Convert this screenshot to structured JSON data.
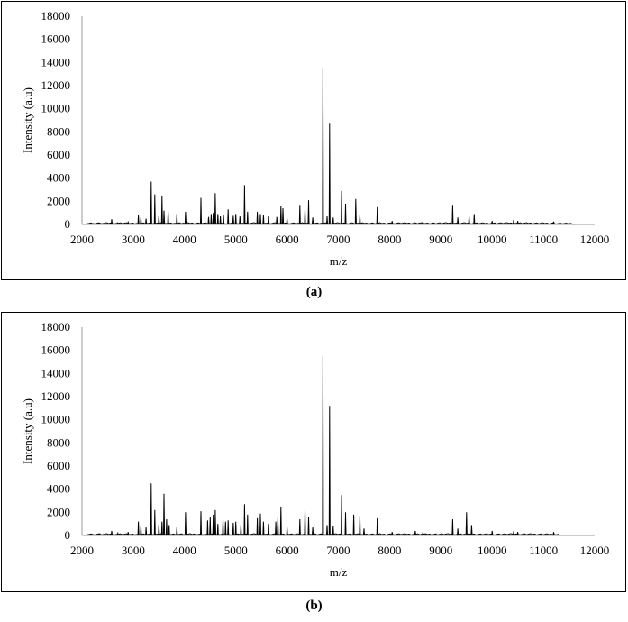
{
  "captions": [
    "(a)",
    "(b)"
  ],
  "chart_data": [
    {
      "type": "line",
      "title": "",
      "xlabel": "m/z",
      "ylabel": "Intensity (a.u)",
      "xlim": [
        2000,
        12000
      ],
      "ylim": [
        0,
        18000
      ],
      "xticks": [
        2000,
        3000,
        4000,
        5000,
        6000,
        7000,
        8000,
        9000,
        10000,
        11000,
        12000
      ],
      "yticks": [
        0,
        2000,
        4000,
        6000,
        8000,
        10000,
        12000,
        14000,
        16000,
        18000
      ],
      "x_end": 11600,
      "grid": false,
      "legend": "none",
      "series": [
        {
          "peaks": [
            [
              2200,
              80
            ],
            [
              2350,
              120
            ],
            [
              2580,
              450
            ],
            [
              2700,
              150
            ],
            [
              2900,
              200
            ],
            [
              3100,
              800
            ],
            [
              3150,
              600
            ],
            [
              3250,
              500
            ],
            [
              3350,
              3700
            ],
            [
              3420,
              2600
            ],
            [
              3500,
              700
            ],
            [
              3560,
              2500
            ],
            [
              3600,
              1200
            ],
            [
              3680,
              1100
            ],
            [
              3850,
              900
            ],
            [
              4020,
              1100
            ],
            [
              4320,
              2300
            ],
            [
              4470,
              650
            ],
            [
              4520,
              900
            ],
            [
              4560,
              1000
            ],
            [
              4600,
              2700
            ],
            [
              4650,
              900
            ],
            [
              4700,
              700
            ],
            [
              4760,
              800
            ],
            [
              4850,
              1300
            ],
            [
              4950,
              750
            ],
            [
              5000,
              900
            ],
            [
              5080,
              700
            ],
            [
              5170,
              3400
            ],
            [
              5230,
              1100
            ],
            [
              5420,
              1100
            ],
            [
              5480,
              900
            ],
            [
              5540,
              800
            ],
            [
              5640,
              700
            ],
            [
              5800,
              650
            ],
            [
              5880,
              1600
            ],
            [
              5920,
              1400
            ],
            [
              6000,
              500
            ],
            [
              6250,
              1700
            ],
            [
              6350,
              1300
            ],
            [
              6420,
              2100
            ],
            [
              6500,
              600
            ],
            [
              6700,
              13600
            ],
            [
              6780,
              700
            ],
            [
              6830,
              8700
            ],
            [
              6900,
              600
            ],
            [
              7060,
              2900
            ],
            [
              7140,
              1800
            ],
            [
              7340,
              2200
            ],
            [
              7420,
              800
            ],
            [
              7760,
              1500
            ],
            [
              8050,
              300
            ],
            [
              8650,
              250
            ],
            [
              9230,
              1700
            ],
            [
              9330,
              600
            ],
            [
              9550,
              700
            ],
            [
              9650,
              900
            ],
            [
              10000,
              300
            ],
            [
              10420,
              400
            ],
            [
              10500,
              300
            ],
            [
              11200,
              250
            ]
          ]
        }
      ]
    },
    {
      "type": "line",
      "title": "",
      "xlabel": "m/z",
      "ylabel": "Intensity (a.u)",
      "xlim": [
        2000,
        12000
      ],
      "ylim": [
        0,
        18000
      ],
      "xticks": [
        2000,
        3000,
        4000,
        5000,
        6000,
        7000,
        8000,
        9000,
        10000,
        11000,
        12000
      ],
      "yticks": [
        0,
        2000,
        4000,
        6000,
        8000,
        10000,
        12000,
        14000,
        16000,
        18000
      ],
      "x_end": 11300,
      "grid": false,
      "legend": "none",
      "series": [
        {
          "peaks": [
            [
              2200,
              100
            ],
            [
              2350,
              150
            ],
            [
              2580,
              400
            ],
            [
              2700,
              200
            ],
            [
              2900,
              300
            ],
            [
              3100,
              1200
            ],
            [
              3150,
              800
            ],
            [
              3250,
              700
            ],
            [
              3350,
              4500
            ],
            [
              3420,
              2200
            ],
            [
              3500,
              900
            ],
            [
              3560,
              1200
            ],
            [
              3600,
              3600
            ],
            [
              3650,
              1400
            ],
            [
              3700,
              900
            ],
            [
              3850,
              700
            ],
            [
              4020,
              2000
            ],
            [
              4320,
              2100
            ],
            [
              4450,
              1300
            ],
            [
              4500,
              1600
            ],
            [
              4560,
              1800
            ],
            [
              4600,
              2200
            ],
            [
              4650,
              1000
            ],
            [
              4750,
              1400
            ],
            [
              4800,
              1200
            ],
            [
              4850,
              1300
            ],
            [
              4950,
              1100
            ],
            [
              5000,
              1200
            ],
            [
              5100,
              900
            ],
            [
              5170,
              2700
            ],
            [
              5230,
              1800
            ],
            [
              5420,
              1500
            ],
            [
              5480,
              1900
            ],
            [
              5540,
              1200
            ],
            [
              5640,
              1000
            ],
            [
              5780,
              1200
            ],
            [
              5820,
              1500
            ],
            [
              5880,
              2500
            ],
            [
              6000,
              700
            ],
            [
              6250,
              1400
            ],
            [
              6350,
              2200
            ],
            [
              6420,
              1600
            ],
            [
              6500,
              700
            ],
            [
              6700,
              15500
            ],
            [
              6780,
              900
            ],
            [
              6830,
              11200
            ],
            [
              6900,
              800
            ],
            [
              7060,
              3500
            ],
            [
              7140,
              2000
            ],
            [
              7300,
              1800
            ],
            [
              7420,
              1700
            ],
            [
              7500,
              600
            ],
            [
              7760,
              1500
            ],
            [
              8050,
              300
            ],
            [
              8500,
              400
            ],
            [
              8650,
              300
            ],
            [
              9230,
              1400
            ],
            [
              9330,
              600
            ],
            [
              9500,
              2000
            ],
            [
              9600,
              900
            ],
            [
              10000,
              400
            ],
            [
              10420,
              350
            ],
            [
              10500,
              300
            ],
            [
              11200,
              300
            ]
          ]
        }
      ]
    }
  ]
}
